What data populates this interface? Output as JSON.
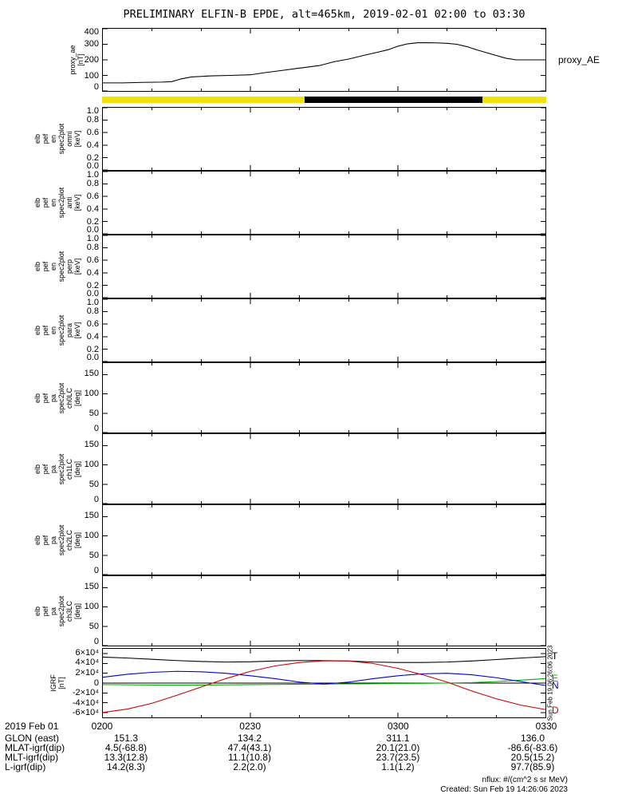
{
  "title": "PRELIMINARY ELFIN-B EPDE, alt=465km, 2019-02-01 02:00 to 03:30",
  "time_axis": {
    "date_label": "2019 Feb 01",
    "ticks": [
      "0200",
      "0230",
      "0300",
      "0330"
    ],
    "tick_minutes": [
      0,
      30,
      60,
      90
    ],
    "major_minutes": [
      30,
      60
    ],
    "minor_minutes": [
      10,
      20,
      40,
      50,
      70,
      80
    ],
    "range_min": [
      0,
      90
    ]
  },
  "panels": [
    {
      "id": "proxy_ae",
      "ylabel": "proxy_ae\n[nT]",
      "right_label": "proxy_AE",
      "ylim": [
        0,
        400
      ],
      "yticks": [
        {
          "label": "0",
          "value": 0
        },
        {
          "label": "100",
          "value": 100
        },
        {
          "label": "200",
          "value": 200
        },
        {
          "label": "300",
          "value": 300
        },
        {
          "label": "400",
          "value": 400
        }
      ]
    },
    {
      "id": "sun_bar"
    },
    {
      "id": "en_omni",
      "ylabel": "elb\npef\nen\nspec2plot\nomni\n[keV]",
      "ylim": [
        0,
        1
      ],
      "yticks": [
        {
          "label": "0.0",
          "value": 0
        },
        {
          "label": "0.2",
          "value": 0.2
        },
        {
          "label": "0.4",
          "value": 0.4
        },
        {
          "label": "0.6",
          "value": 0.6
        },
        {
          "label": "0.8",
          "value": 0.8
        },
        {
          "label": "1.0",
          "value": 1
        }
      ]
    },
    {
      "id": "en_anti",
      "ylabel": "elb\npef\nen\nspec2plot\nanti\n[keV]",
      "ylim": [
        0,
        1
      ],
      "yticks": [
        {
          "label": "0.0",
          "value": 0
        },
        {
          "label": "0.2",
          "value": 0.2
        },
        {
          "label": "0.4",
          "value": 0.4
        },
        {
          "label": "0.6",
          "value": 0.6
        },
        {
          "label": "0.8",
          "value": 0.8
        },
        {
          "label": "1.0",
          "value": 1
        }
      ]
    },
    {
      "id": "en_perp",
      "ylabel": "elb\npef\nen\nspec2plot\nperp\n[keV]",
      "ylim": [
        0,
        1
      ],
      "yticks": [
        {
          "label": "0.0",
          "value": 0
        },
        {
          "label": "0.2",
          "value": 0.2
        },
        {
          "label": "0.4",
          "value": 0.4
        },
        {
          "label": "0.6",
          "value": 0.6
        },
        {
          "label": "0.8",
          "value": 0.8
        },
        {
          "label": "1.0",
          "value": 1
        }
      ]
    },
    {
      "id": "en_para",
      "ylabel": "elb\npef\nen\nspec2plot\npara\n[keV]",
      "ylim": [
        0,
        1
      ],
      "yticks": [
        {
          "label": "0.0",
          "value": 0
        },
        {
          "label": "0.2",
          "value": 0.2
        },
        {
          "label": "0.4",
          "value": 0.4
        },
        {
          "label": "0.6",
          "value": 0.6
        },
        {
          "label": "0.8",
          "value": 0.8
        },
        {
          "label": "1.0",
          "value": 1
        }
      ]
    },
    {
      "id": "pa_ch0",
      "ylabel": "elb\npef\npa\nspec2plot\nch0LC\n[deg]",
      "ylim": [
        0,
        180
      ],
      "yticks": [
        {
          "label": "0",
          "value": 0
        },
        {
          "label": "50",
          "value": 50
        },
        {
          "label": "100",
          "value": 100
        },
        {
          "label": "150",
          "value": 150
        }
      ]
    },
    {
      "id": "pa_ch1",
      "ylabel": "elb\npef\npa\nspec2plot\nch1LC\n[deg]",
      "ylim": [
        0,
        180
      ],
      "yticks": [
        {
          "label": "0",
          "value": 0
        },
        {
          "label": "50",
          "value": 50
        },
        {
          "label": "100",
          "value": 100
        },
        {
          "label": "150",
          "value": 150
        }
      ]
    },
    {
      "id": "pa_ch2",
      "ylabel": "elb\npef\npa\nspec2plot\nch2LC\n[deg]",
      "ylim": [
        0,
        180
      ],
      "yticks": [
        {
          "label": "0",
          "value": 0
        },
        {
          "label": "50",
          "value": 50
        },
        {
          "label": "100",
          "value": 100
        },
        {
          "label": "150",
          "value": 150
        }
      ]
    },
    {
      "id": "pa_ch3",
      "ylabel": "elb\npef\npa\nspec2plot\nch3LC\n[deg]",
      "ylim": [
        0,
        180
      ],
      "yticks": [
        {
          "label": "0",
          "value": 0
        },
        {
          "label": "50",
          "value": 50
        },
        {
          "label": "100",
          "value": 100
        },
        {
          "label": "150",
          "value": 150
        }
      ]
    },
    {
      "id": "igrf",
      "ylabel": "IGRF\n[nT]",
      "ylim": [
        -70000,
        70000
      ],
      "yticks": [
        {
          "label": "-6×10⁴",
          "value": -60000
        },
        {
          "label": "-4×10⁴",
          "value": -40000
        },
        {
          "label": "-2×10⁴",
          "value": -20000
        },
        {
          "label": "0",
          "value": 0
        },
        {
          "label": "2×10⁴",
          "value": 20000
        },
        {
          "label": "4×10⁴",
          "value": 40000
        },
        {
          "label": "6×10⁴",
          "value": 60000
        }
      ],
      "right_labels": [
        {
          "text": "T",
          "color": "#000000",
          "value": 54000
        },
        {
          "text": "E",
          "color": "#00b000",
          "value": 9000
        },
        {
          "text": "N",
          "color": "#0000d0",
          "value": -5000
        },
        {
          "text": "D",
          "color": "#d00000",
          "value": -54000
        }
      ]
    }
  ],
  "chart_data": [
    {
      "type": "line",
      "panel": "proxy_ae",
      "name": "proxy_AE",
      "color": "#000000",
      "ylim": [
        0,
        400
      ],
      "xlim_minutes": [
        0,
        90
      ],
      "x_min": [
        0,
        4,
        8,
        12,
        14,
        16,
        18,
        22,
        26,
        30,
        33,
        36,
        40,
        44,
        47,
        50,
        53,
        56,
        58,
        60,
        62,
        64,
        66,
        68,
        70,
        72,
        74,
        76,
        78,
        80,
        82,
        84,
        86,
        88,
        90
      ],
      "y": [
        52,
        52,
        55,
        57,
        60,
        78,
        90,
        97,
        100,
        104,
        118,
        130,
        147,
        163,
        188,
        205,
        228,
        250,
        265,
        288,
        303,
        310,
        310,
        309,
        306,
        300,
        285,
        265,
        246,
        228,
        210,
        200,
        200,
        200,
        200
      ]
    },
    {
      "type": "strip",
      "panel": "sun_bar",
      "segments": [
        {
          "color": "#f2e20a",
          "start_min": 0,
          "end_min": 41
        },
        {
          "color": "#000000",
          "start_min": 41,
          "end_min": 77
        },
        {
          "color": "#f2e20a",
          "start_min": 77,
          "end_min": 90
        }
      ]
    },
    {
      "type": "line",
      "panel": "igrf",
      "ylim": [
        -70000,
        70000
      ],
      "xlim_minutes": [
        0,
        90
      ],
      "series": [
        {
          "name": "T",
          "color": "#000000",
          "x_min": [
            0,
            5,
            10,
            15,
            20,
            25,
            30,
            35,
            40,
            45,
            50,
            55,
            60,
            65,
            70,
            75,
            80,
            85,
            90
          ],
          "y": [
            53000,
            51000,
            48500,
            46000,
            44000,
            43000,
            43500,
            45000,
            46000,
            46000,
            45000,
            43000,
            42000,
            42000,
            43000,
            45000,
            48000,
            51000,
            54000
          ]
        },
        {
          "name": "E",
          "color": "#00b000",
          "x_min": [
            0,
            5,
            10,
            15,
            20,
            25,
            30,
            35,
            40,
            45,
            50,
            55,
            60,
            65,
            70,
            75,
            80,
            85,
            90
          ],
          "y": [
            -3000,
            -3500,
            -4000,
            -4200,
            -4000,
            -3600,
            -3200,
            -2800,
            -2400,
            -2000,
            -1600,
            -1200,
            -800,
            -400,
            0,
            1000,
            3000,
            6000,
            9000
          ]
        },
        {
          "name": "N",
          "color": "#0000d0",
          "x_min": [
            0,
            5,
            10,
            15,
            20,
            25,
            30,
            35,
            40,
            45,
            50,
            55,
            60,
            65,
            70,
            75,
            80,
            85,
            90
          ],
          "y": [
            12000,
            18000,
            22000,
            24000,
            23000,
            20000,
            15000,
            9000,
            2000,
            -2000,
            2000,
            9000,
            15000,
            19000,
            20000,
            17000,
            11000,
            3000,
            -5000
          ]
        },
        {
          "name": "D",
          "color": "#d00000",
          "x_min": [
            0,
            5,
            10,
            15,
            20,
            25,
            30,
            35,
            40,
            45,
            50,
            55,
            60,
            65,
            70,
            75,
            80,
            85,
            90
          ],
          "y": [
            -60000,
            -53000,
            -41000,
            -25000,
            -8000,
            9000,
            24000,
            35000,
            42000,
            45500,
            45000,
            40000,
            30000,
            17000,
            2000,
            -16000,
            -32000,
            -45000,
            -54000
          ]
        }
      ]
    }
  ],
  "bottom_rows": [
    {
      "label": "GLON (east)",
      "values": [
        "151.3",
        "134.2",
        "311.1",
        "136.0"
      ]
    },
    {
      "label": "MLAT-igrf(dip)",
      "values": [
        "4.5(-68.8)",
        "47.4(43.1)",
        "20.1(21.0)",
        "-86.6(-83.6)"
      ]
    },
    {
      "label": "MLT-igrf(dip)",
      "values": [
        "13.3(12.8)",
        "11.1(10.8)",
        "23.7(23.5)",
        "20.5(15.2)"
      ]
    },
    {
      "label": "L-igrf(dip)",
      "values": [
        "14.2(8.3)",
        "2.2(2.0)",
        "1.1(1.2)",
        "97.7(85.9)"
      ]
    }
  ],
  "footer": {
    "nflux_note": "nflux: #/(cm^2 s sr MeV)",
    "created": "Created: Sun Feb 19 14:26:06 2023"
  },
  "side_timestamp": "Sun Feb 19 06:26:06 2023"
}
